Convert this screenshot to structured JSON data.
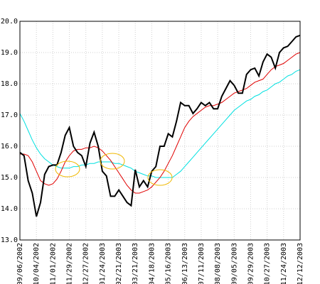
{
  "chart_data": {
    "type": "line",
    "categories": [
      "09/06/2002",
      null,
      null,
      null,
      "10/04/2002",
      null,
      null,
      null,
      "11/01/2002",
      null,
      null,
      null,
      "11/29/2002",
      null,
      null,
      null,
      "12/27/2002",
      null,
      null,
      null,
      "01/24/2003",
      null,
      null,
      null,
      "02/21/2003",
      null,
      null,
      null,
      "03/21/2003",
      null,
      null,
      null,
      "04/18/2003",
      null,
      null,
      null,
      "05/16/2003",
      null,
      null,
      null,
      "06/13/2003",
      null,
      null,
      null,
      "07/11/2003",
      null,
      null,
      null,
      "08/08/2003",
      null,
      null,
      null,
      "09/05/2003",
      null,
      null,
      null,
      "09/29/2003",
      null,
      null,
      null,
      "10/27/2003",
      null,
      null,
      null,
      "11/24/2003",
      null,
      null,
      null,
      "12/12/2003"
    ],
    "series": [
      {
        "color": "#00e0e0",
        "values": [
          17.05,
          16.8,
          16.5,
          16.2,
          15.95,
          15.75,
          15.6,
          15.5,
          15.4,
          15.35,
          15.3,
          15.3,
          15.3,
          15.35,
          15.35,
          15.4,
          15.4,
          15.45,
          15.45,
          15.5,
          15.5,
          15.5,
          15.5,
          15.45,
          15.45,
          15.4,
          15.35,
          15.3,
          15.2,
          15.15,
          15.1,
          15.05,
          15.05,
          15.0,
          15.0,
          15.0,
          15.0,
          15.0,
          15.1,
          15.2,
          15.35,
          15.5,
          15.65,
          15.8,
          15.95,
          16.1,
          16.25,
          16.4,
          16.55,
          16.7,
          16.85,
          17.0,
          17.15,
          17.25,
          17.35,
          17.45,
          17.5,
          17.6,
          17.65,
          17.75,
          17.8,
          17.9,
          18.0,
          18.05,
          18.15,
          18.25,
          18.3,
          18.4,
          18.45
        ]
      },
      {
        "color": "#e00000",
        "values": [
          15.75,
          15.75,
          15.7,
          15.5,
          15.2,
          14.9,
          14.8,
          14.75,
          14.8,
          14.95,
          15.2,
          15.5,
          15.7,
          15.85,
          15.9,
          15.9,
          15.95,
          15.95,
          16.0,
          15.95,
          15.85,
          15.7,
          15.55,
          15.35,
          15.15,
          14.95,
          14.75,
          14.6,
          14.5,
          14.5,
          14.55,
          14.6,
          14.7,
          14.85,
          15.0,
          15.2,
          15.45,
          15.7,
          16.0,
          16.3,
          16.6,
          16.8,
          16.95,
          17.05,
          17.15,
          17.25,
          17.3,
          17.3,
          17.35,
          17.4,
          17.5,
          17.6,
          17.7,
          17.75,
          17.8,
          17.85,
          17.95,
          18.05,
          18.1,
          18.15,
          18.3,
          18.45,
          18.55,
          18.6,
          18.65,
          18.75,
          18.85,
          18.95,
          19.0
        ]
      },
      {
        "color": "#000000",
        "values": [
          15.8,
          15.7,
          14.9,
          14.5,
          13.75,
          14.2,
          15.1,
          15.35,
          15.4,
          15.4,
          15.8,
          16.35,
          16.6,
          16.0,
          15.8,
          15.7,
          15.35,
          16.1,
          16.45,
          16.0,
          15.2,
          15.05,
          14.4,
          14.4,
          14.6,
          14.4,
          14.2,
          14.1,
          15.25,
          14.7,
          14.9,
          14.7,
          15.2,
          15.35,
          16.0,
          16.0,
          16.4,
          16.3,
          16.8,
          17.4,
          17.3,
          17.3,
          17.05,
          17.2,
          17.4,
          17.3,
          17.4,
          17.2,
          17.2,
          17.6,
          17.85,
          18.1,
          17.95,
          17.7,
          17.7,
          18.3,
          18.45,
          18.5,
          18.25,
          18.7,
          18.95,
          18.85,
          18.5,
          19.0,
          19.15,
          19.2,
          19.35,
          19.5,
          19.55
        ]
      }
    ],
    "ylim": [
      13,
      20
    ],
    "yticks": [
      {
        "value": 13,
        "label": "13.0"
      },
      {
        "value": 14,
        "label": "14.0"
      },
      {
        "value": 15,
        "label": "15.0"
      },
      {
        "value": 16,
        "label": "16.0"
      },
      {
        "value": 17,
        "label": "17.0"
      },
      {
        "value": 18,
        "label": "18.0"
      },
      {
        "value": 19,
        "label": "19.0"
      },
      {
        "value": 20,
        "label": "20.0"
      }
    ],
    "grid": true
  }
}
